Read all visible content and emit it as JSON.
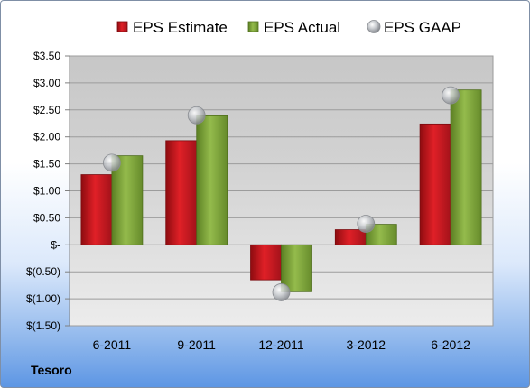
{
  "chart_data": {
    "type": "bar",
    "categories": [
      "6-2011",
      "9-2011",
      "12-2011",
      "3-2012",
      "6-2012"
    ],
    "series": [
      {
        "name": "EPS Estimate",
        "kind": "bar",
        "color": "#c9161d",
        "values": [
          1.3,
          1.93,
          -0.65,
          0.28,
          2.24
        ]
      },
      {
        "name": "EPS Actual",
        "kind": "bar",
        "color": "#80a73a",
        "values": [
          1.65,
          2.39,
          -0.87,
          0.38,
          2.87
        ]
      },
      {
        "name": "EPS GAAP",
        "kind": "marker",
        "color": "#b8bcc2",
        "values": [
          1.52,
          2.4,
          -0.88,
          0.39,
          2.77
        ]
      }
    ],
    "ylim": [
      -1.5,
      3.5
    ],
    "yticks": [
      3.5,
      3.0,
      2.5,
      2.0,
      1.5,
      1.0,
      0.5,
      0,
      -0.5,
      -1.0,
      -1.5
    ],
    "ytick_labels": [
      "$3.50",
      "$3.00",
      "$2.50",
      "$2.00",
      "$1.50",
      "$1.00",
      "$0.50",
      "$-",
      "$(0.50)",
      "$(1.00)",
      "$(1.50)"
    ],
    "grid": true,
    "legend_position": "top"
  },
  "footer": {
    "company": "Tesoro"
  }
}
